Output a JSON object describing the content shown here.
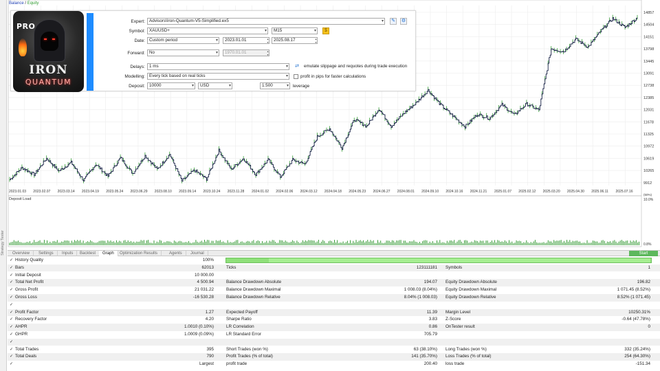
{
  "legend": {
    "balance": "Balance",
    "sep": " / ",
    "equity": "Equity"
  },
  "left_strip_label": "Strategy Tester",
  "colors": {
    "balance": "#1f3fb4",
    "equity": "#2f9b2f",
    "deposit_load": "#1e8f1e",
    "accent": "#1e8cff",
    "progress": "#8fe07a"
  },
  "price_axis": {
    "ticks": [
      "14857",
      "14504",
      "14151",
      "13798",
      "13445",
      "13091",
      "12738",
      "12385",
      "12031",
      "11678",
      "11325",
      "10972",
      "10619",
      "10265",
      "9912"
    ]
  },
  "date_axis": {
    "ticks": [
      "2023.01.03",
      "2023.02.07",
      "2023.03.14",
      "2023.04.19",
      "2023.05.24",
      "2023.06.29",
      "2023.08.10",
      "2023.09.14",
      "2023.10.24",
      "2023.11.28",
      "2024.01.02",
      "2024.02.06",
      "2024.03.12",
      "2024.04.18",
      "2024.05.23",
      "2024.06.27",
      "2024.08.01",
      "2024.09.10",
      "2024.10.16",
      "2024.11.21",
      "2025.01.07",
      "2025.02.12",
      "2025.03.20",
      "2025.04.30",
      "2025.06.11",
      "2025.07.16"
    ]
  },
  "deposit_load": {
    "title": "Deposit Load",
    "axis_top": "10.0%",
    "axis_bottom": "0.8%",
    "axis_unit": "(50%)"
  },
  "chart_data": {
    "type": "line",
    "series": [
      {
        "name": "Balance",
        "values": [
          10000,
          10350,
          10150,
          10620,
          10250,
          10500,
          9980,
          10450,
          10100,
          10640,
          10180,
          10700,
          10300,
          10740,
          9960,
          10280,
          10020,
          10850,
          10300,
          10620,
          10150,
          10580,
          10080,
          10580,
          10450,
          11250,
          11480,
          10920,
          11750,
          11550,
          12060,
          11550,
          11920,
          12220,
          12600,
          12180,
          11860,
          11540,
          11900,
          11780,
          12180,
          11880,
          12200,
          12020,
          13800,
          13720,
          14080,
          13850,
          14300,
          14680,
          14420,
          14700
        ]
      }
    ],
    "ylim": [
      9912,
      14857
    ]
  },
  "settings": {
    "logo": {
      "pro": "PRO",
      "line1": "IRON",
      "line2": "QUANTUM"
    },
    "expert_label": "Expert:",
    "expert_value": "Advisors\\Iron-Quantum-V5-Simplified.ex5",
    "symbol_label": "Symbol:",
    "symbol_value": "XAUUSD+",
    "timeframe_value": "M15",
    "date_label": "Date:",
    "date_mode": "Custom period",
    "date_from": "2023.01.01",
    "date_to": "2025.08.17",
    "forward_label": "Forward:",
    "forward_value": "No",
    "forward_date": "1970.01.01",
    "delays_label": "Delays:",
    "delays_value": "1 ms",
    "delays_note": "emulate slippage and requotes during trade execution",
    "modelling_label": "Modelling:",
    "modelling_value": "Every tick based on real ticks",
    "pips_note": "profit in pips for faster calculations",
    "deposit_label": "Deposit:",
    "deposit_value": "10000",
    "currency_value": "USD",
    "leverage_value": "1:500",
    "leverage_label": "leverage"
  },
  "tabs": [
    {
      "label": "Overview"
    },
    {
      "label": "Settings"
    },
    {
      "label": "Inputs"
    },
    {
      "label": "Backtest"
    },
    {
      "label": "Graph"
    },
    {
      "label": "Optimization Results"
    },
    {
      "label": "Agents"
    },
    {
      "label": "Journal"
    }
  ],
  "start_label": "Start",
  "results": {
    "rows": [
      {
        "c1": "History Quality",
        "v1": "100%"
      },
      {
        "c1": "Bars",
        "v1": "62013",
        "c2": "Ticks",
        "v2": "123111181",
        "c3": "Symbols",
        "v3": "1"
      },
      {
        "c1": "Initial Deposit",
        "v1": "10 000.00"
      },
      {
        "c1": "Total Net Profit",
        "v1": "4 500.94",
        "c2": "Balance Drawdown Absolute",
        "v2": "194.07",
        "c3": "Equity Drawdown Absolute",
        "v3": "196.82"
      },
      {
        "c1": "Gross Profit",
        "v1": "21 031.22",
        "c2": "Balance Drawdown Maximal",
        "v2": "1 008.03 (8.04%)",
        "c3": "Equity Drawdown Maximal",
        "v3": "1 071.45 (8.52%)"
      },
      {
        "c1": "Gross Loss",
        "v1": "-16 530.28",
        "c2": "Balance Drawdown Relative",
        "v2": "8.04% (1 008.03)",
        "c3": "Equity Drawdown Relative",
        "v3": "8.52% (1 071.45)"
      },
      {
        "c1": ""
      },
      {
        "c1": "Profit Factor",
        "v1": "1.27",
        "c2": "Expected Payoff",
        "v2": "11.39",
        "c3": "Margin Level",
        "v3": "10250.31%"
      },
      {
        "c1": "Recovery Factor",
        "v1": "4.20",
        "c2": "Sharpe Ratio",
        "v2": "3.83",
        "c3": "Z-Score",
        "v3": "-0.64 (47.78%)"
      },
      {
        "c1": "AHPR",
        "v1": "1.0010 (0.10%)",
        "c2": "LR Correlation",
        "v2": "0.86",
        "c3": "OnTester result",
        "v3": "0"
      },
      {
        "c1": "GHPR",
        "v1": "1.0009 (0.09%)",
        "c2": "LR Standard Error",
        "v2": "705.79"
      },
      {
        "c1": ""
      },
      {
        "c1": "Total Trades",
        "v1": "395",
        "c2": "Short Trades (won %)",
        "v2": "63 (38.10%)",
        "c3": "Long Trades (won %)",
        "v3": "332 (35.24%)"
      },
      {
        "c1": "Total Deals",
        "v1": "790",
        "c2": "Profit Trades (% of total)",
        "v2": "141 (35.70%)",
        "c3": "Loss Trades (% of total)",
        "v3": "254 (64.30%)"
      },
      {
        "c1": "",
        "v1": "Largest",
        "c2": "profit trade",
        "v2": "200.40",
        "c3": "loss trade",
        "v3": "-151.34"
      }
    ]
  }
}
